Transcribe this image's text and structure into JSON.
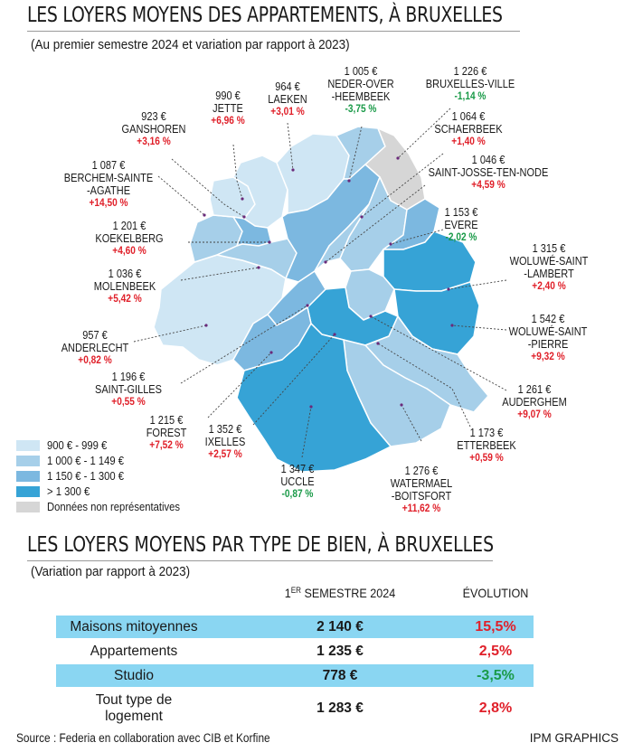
{
  "title": "LES LOYERS MOYENS DES APPARTEMENTS, À BRUXELLES",
  "subtitle": "(Au premier semestre 2024 et variation par rapport à 2023)",
  "colors": {
    "band1": "#cfe6f4",
    "band2": "#a6cfe9",
    "band3": "#7cb8e0",
    "band4": "#36a3d6",
    "na": "#d6d6d6",
    "positive": "#e0202a",
    "negative": "#1a9a48",
    "table_highlight": "#8ad6f2"
  },
  "communes": [
    {
      "id": "jette",
      "price": "990 €",
      "name": "JETTE",
      "variation": "+6,96 %",
      "sign": "pos"
    },
    {
      "id": "laeken",
      "price": "964 €",
      "name": "LAEKEN",
      "variation": "+3,01 %",
      "sign": "pos"
    },
    {
      "id": "nederoverheembeek",
      "price": "1 005 €",
      "name": "NEDER-OVER\n-HEEMBEEK",
      "variation": "-3,75 %",
      "sign": "neg"
    },
    {
      "id": "bruxellesville",
      "price": "1 226 €",
      "name": "BRUXELLES-VILLE",
      "variation": "-1,14 %",
      "sign": "neg"
    },
    {
      "id": "ganshoren",
      "price": "923 €",
      "name": "GANSHOREN",
      "variation": "+3,16 %",
      "sign": "pos"
    },
    {
      "id": "schaerbeek",
      "price": "1 064 €",
      "name": "SCHAERBEEK",
      "variation": "+1,40 %",
      "sign": "pos"
    },
    {
      "id": "berchem",
      "price": "1 087 €",
      "name": "BERCHEM-SAINTE\n-AGATHE",
      "variation": "+14,50 %",
      "sign": "pos"
    },
    {
      "id": "saintjosse",
      "price": "1 046 €",
      "name": "SAINT-JOSSE-TEN-NODE",
      "variation": "+4,59 %",
      "sign": "pos"
    },
    {
      "id": "evere",
      "price": "1 153 €",
      "name": "EVERE",
      "variation": "-2,02 %",
      "sign": "neg"
    },
    {
      "id": "koekelberg",
      "price": "1 201 €",
      "name": "KOEKELBERG",
      "variation": "+4,60 %",
      "sign": "pos"
    },
    {
      "id": "wolsl",
      "price": "1 315 €",
      "name": "WOLUWÉ-SAINT\n-LAMBERT",
      "variation": "+2,40 %",
      "sign": "pos"
    },
    {
      "id": "molenbeek",
      "price": "1 036 €",
      "name": "MOLENBEEK",
      "variation": "+5,42 %",
      "sign": "pos"
    },
    {
      "id": "wolsp",
      "price": "1 542 €",
      "name": "WOLUWÉ-SAINT\n-PIERRE",
      "variation": "+9,32 %",
      "sign": "pos"
    },
    {
      "id": "anderlecht",
      "price": "957 €",
      "name": "ANDERLECHT",
      "variation": "+0,82 %",
      "sign": "pos"
    },
    {
      "id": "saintgilles",
      "price": "1 196 €",
      "name": "SAINT-GILLES",
      "variation": "+0,55 %",
      "sign": "pos"
    },
    {
      "id": "auderghem",
      "price": "1 261 €",
      "name": "AUDERGHEM",
      "variation": "+9,07 %",
      "sign": "pos"
    },
    {
      "id": "forest",
      "price": "1 215 €",
      "name": "FOREST",
      "variation": "+7,52 %",
      "sign": "pos"
    },
    {
      "id": "ixelles",
      "price": "1 352 €",
      "name": "IXELLES",
      "variation": "+2,57 %",
      "sign": "pos"
    },
    {
      "id": "etterbeek",
      "price": "1 173 €",
      "name": "ETTERBEEK",
      "variation": "+0,59 %",
      "sign": "pos"
    },
    {
      "id": "uccle",
      "price": "1 347 €",
      "name": "UCCLE",
      "variation": "-0,87 %",
      "sign": "neg"
    },
    {
      "id": "watermael",
      "price": "1 276 €",
      "name": "WATERMAEL\n-BOITSFORT",
      "variation": "+11,62 %",
      "sign": "pos"
    }
  ],
  "legend": [
    {
      "label": "900 € - 999 €",
      "color": "#cfe6f4"
    },
    {
      "label": "1 000 € - 1 149 €",
      "color": "#a6cfe9"
    },
    {
      "label": "1 150 € - 1 300 €",
      "color": "#7cb8e0"
    },
    {
      "label": "> 1 300 €",
      "color": "#36a3d6"
    },
    {
      "label": "Données non représentatives",
      "color": "#d6d6d6"
    }
  ],
  "table": {
    "title": "LES LOYERS MOYENS PAR TYPE DE BIEN, À BRUXELLES",
    "subtitle": "(Variation par rapport à 2023)",
    "col_period_sup": "ER",
    "col_period_num": "1",
    "col_period_rest": " SEMESTRE 2024",
    "col_evolution": "ÉVOLUTION",
    "rows": [
      {
        "type": "Maisons mitoyennes",
        "price": "2 140 €",
        "evolution": "15,5%",
        "sign": "pos",
        "highlight": true
      },
      {
        "type": "Appartements",
        "price": "1 235 €",
        "evolution": "2,5%",
        "sign": "pos",
        "highlight": false
      },
      {
        "type": "Studio",
        "price": "778 €",
        "evolution": "-3,5%",
        "sign": "neg",
        "highlight": true
      },
      {
        "type": "Tout type de\nlogement",
        "price": "1 283 €",
        "evolution": "2,8%",
        "sign": "pos",
        "highlight": false
      }
    ]
  },
  "source": "Source :  Federia en collaboration avec CIB et Korfine",
  "credit": "IPM GRAPHICS"
}
